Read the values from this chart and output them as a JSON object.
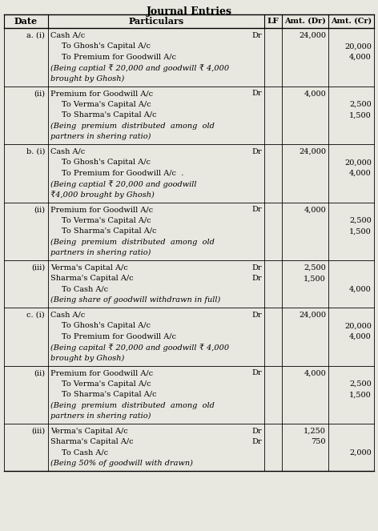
{
  "title": "Journal Entries",
  "background": "#e8e8e0",
  "rows": [
    {
      "date": "a. (i)",
      "lines": [
        {
          "text": "Cash A/c",
          "indent": 0,
          "dr": true,
          "narration": false
        },
        {
          "text": "To Ghosh's Capital A/c",
          "indent": 1,
          "dr": false,
          "narration": false
        },
        {
          "text": "To Premium for Goodwill A/c",
          "indent": 1,
          "dr": false,
          "narration": false
        },
        {
          "text": "(Being captial ₹ 20,000 and goodwill ₹ 4,000",
          "indent": 0,
          "dr": false,
          "narration": true
        },
        {
          "text": "brought by Ghosh)",
          "indent": 0,
          "dr": false,
          "narration": true
        }
      ],
      "dr_vals": [
        "24,000",
        "",
        "",
        "",
        ""
      ],
      "cr_vals": [
        "",
        "20,000",
        "4,000",
        "",
        ""
      ]
    },
    {
      "date": "(ii)",
      "lines": [
        {
          "text": "Premium for Goodwill A/c",
          "indent": 0,
          "dr": true,
          "narration": false
        },
        {
          "text": "To Verma's Capital A/c",
          "indent": 1,
          "dr": false,
          "narration": false
        },
        {
          "text": "To Sharma's Capital A/c",
          "indent": 1,
          "dr": false,
          "narration": false
        },
        {
          "text": "(Being  premium  distributed  among  old",
          "indent": 0,
          "dr": false,
          "narration": true
        },
        {
          "text": "partners in shering ratio)",
          "indent": 0,
          "dr": false,
          "narration": true
        }
      ],
      "dr_vals": [
        "4,000",
        "",
        "",
        "",
        ""
      ],
      "cr_vals": [
        "",
        "2,500",
        "1,500",
        "",
        ""
      ]
    },
    {
      "date": "b. (i)",
      "lines": [
        {
          "text": "Cash A/c",
          "indent": 0,
          "dr": true,
          "narration": false
        },
        {
          "text": "To Ghosh's Capital A/c",
          "indent": 1,
          "dr": false,
          "narration": false
        },
        {
          "text": "To Premium for Goodwill A/c  .",
          "indent": 1,
          "dr": false,
          "narration": false
        },
        {
          "text": "(Being captial ₹ 20,000 and goodwill",
          "indent": 0,
          "dr": false,
          "narration": true
        },
        {
          "text": "₹4,000 brought by Ghosh)",
          "indent": 0,
          "dr": false,
          "narration": true
        }
      ],
      "dr_vals": [
        "24,000",
        "",
        "",
        "",
        ""
      ],
      "cr_vals": [
        "",
        "20,000",
        "4,000",
        "",
        ""
      ]
    },
    {
      "date": "(ii)",
      "lines": [
        {
          "text": "Premium for Goodwill A/c",
          "indent": 0,
          "dr": true,
          "narration": false
        },
        {
          "text": "To Verma's Capital A/c",
          "indent": 1,
          "dr": false,
          "narration": false
        },
        {
          "text": "To Sharma's Capital A/c",
          "indent": 1,
          "dr": false,
          "narration": false
        },
        {
          "text": "(Being  premium  distributed  among  old",
          "indent": 0,
          "dr": false,
          "narration": true
        },
        {
          "text": "partners in shering ratio)",
          "indent": 0,
          "dr": false,
          "narration": true
        }
      ],
      "dr_vals": [
        "4,000",
        "",
        "",
        "",
        ""
      ],
      "cr_vals": [
        "",
        "2,500",
        "1,500",
        "",
        ""
      ]
    },
    {
      "date": "(iii)",
      "lines": [
        {
          "text": "Verma's Capital A/c",
          "indent": 0,
          "dr": true,
          "narration": false
        },
        {
          "text": "Sharma's Capital A/c",
          "indent": 0,
          "dr": true,
          "narration": false
        },
        {
          "text": "To Cash A/c",
          "indent": 1,
          "dr": false,
          "narration": false
        },
        {
          "text": "(Being share of goodwill withdrawn in full)",
          "indent": 0,
          "dr": false,
          "narration": true
        }
      ],
      "dr_vals": [
        "2,500",
        "1,500",
        "",
        ""
      ],
      "cr_vals": [
        "",
        "",
        "4,000",
        ""
      ]
    },
    {
      "date": "c. (i)",
      "lines": [
        {
          "text": "Cash A/c",
          "indent": 0,
          "dr": true,
          "narration": false
        },
        {
          "text": "To Ghosh's Capital A/c",
          "indent": 1,
          "dr": false,
          "narration": false
        },
        {
          "text": "To Premium for Goodwill A/c",
          "indent": 1,
          "dr": false,
          "narration": false
        },
        {
          "text": "(Being capital ₹ 20,000 and goodwill ₹ 4,000",
          "indent": 0,
          "dr": false,
          "narration": true
        },
        {
          "text": "brought by Ghosh)",
          "indent": 0,
          "dr": false,
          "narration": true
        }
      ],
      "dr_vals": [
        "24,000",
        "",
        "",
        "",
        ""
      ],
      "cr_vals": [
        "",
        "20,000",
        "4,000",
        "",
        ""
      ]
    },
    {
      "date": "(ii)",
      "lines": [
        {
          "text": "Premium for Goodwill A/c",
          "indent": 0,
          "dr": true,
          "narration": false
        },
        {
          "text": "To Verma's Capital A/c",
          "indent": 1,
          "dr": false,
          "narration": false
        },
        {
          "text": "To Sharma's Capital A/c",
          "indent": 1,
          "dr": false,
          "narration": false
        },
        {
          "text": "(Being  premium  distributed  among  old",
          "indent": 0,
          "dr": false,
          "narration": true
        },
        {
          "text": "partners in shering ratio)",
          "indent": 0,
          "dr": false,
          "narration": true
        }
      ],
      "dr_vals": [
        "4,000",
        "",
        "",
        "",
        ""
      ],
      "cr_vals": [
        "",
        "2,500",
        "1,500",
        "",
        ""
      ]
    },
    {
      "date": "(iii)",
      "lines": [
        {
          "text": "Verma's Capital A/c",
          "indent": 0,
          "dr": true,
          "narration": false
        },
        {
          "text": "Sharma's Capital A/c",
          "indent": 0,
          "dr": true,
          "narration": false
        },
        {
          "text": "To Cash A/c",
          "indent": 1,
          "dr": false,
          "narration": false
        },
        {
          "text": "(Being 50% of goodwill with drawn)",
          "indent": 0,
          "dr": false,
          "narration": true
        }
      ],
      "dr_vals": [
        "1,250",
        "750",
        "",
        ""
      ],
      "cr_vals": [
        "",
        "",
        "2,000",
        ""
      ]
    }
  ]
}
